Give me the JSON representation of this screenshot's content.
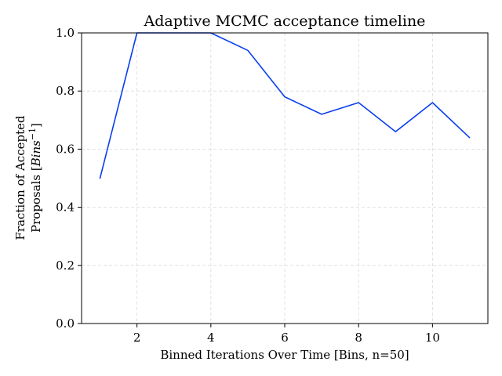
{
  "chart_data": {
    "type": "line",
    "title": "Adaptive MCMC acceptance timeline",
    "xlabel": "Binned Iterations Over Time [Bins, n=50]",
    "ylabel_line1": "Fraction of Accepted",
    "ylabel_line2_prefix": "Proposals [",
    "ylabel_line2_math": "Bins",
    "ylabel_line2_exp": "−1",
    "ylabel_line2_suffix": "]",
    "xlim": [
      0.5,
      11.5
    ],
    "ylim": [
      0.0,
      1.0
    ],
    "xticks": [
      2,
      4,
      6,
      8,
      10
    ],
    "yticks": [
      0.0,
      0.2,
      0.4,
      0.6,
      0.8,
      1.0
    ],
    "xtick_labels": [
      "2",
      "4",
      "6",
      "8",
      "10"
    ],
    "ytick_labels": [
      "0.0",
      "0.2",
      "0.4",
      "0.6",
      "0.8",
      "1.0"
    ],
    "grid": true,
    "series": [
      {
        "color": "#0a3ff0",
        "x": [
          1,
          2,
          3,
          4,
          5,
          6,
          7,
          8,
          9,
          10,
          11
        ],
        "values": [
          0.5,
          1.0,
          1.0,
          1.0,
          0.94,
          0.78,
          0.72,
          0.76,
          0.66,
          0.76,
          0.64
        ]
      }
    ]
  }
}
